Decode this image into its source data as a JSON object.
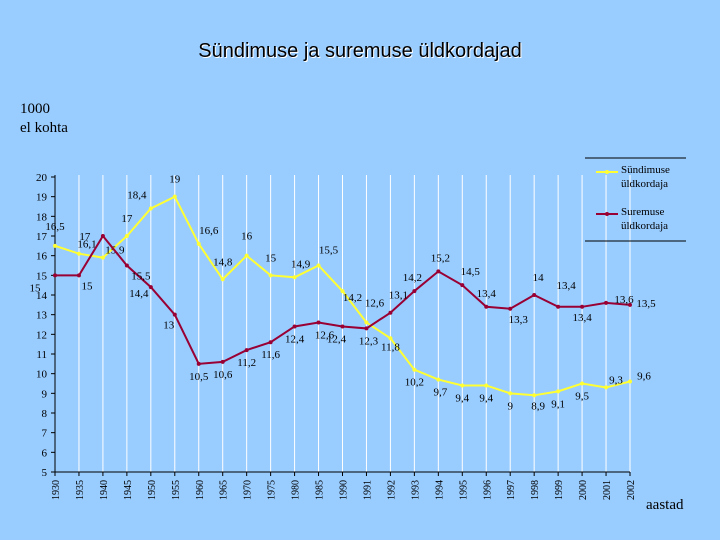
{
  "title": "Sündimuse ja suremuse üldkordajad",
  "ylabel": "1000\nel kohta",
  "xlabel": "aastad",
  "chart_data": {
    "type": "line",
    "title": "Sündimuse ja suremuse üldkordajad",
    "ylabel": "1000 el kohta",
    "xlabel": "aastad",
    "ylim": [
      5,
      20
    ],
    "yticks": [
      5,
      6,
      7,
      8,
      9,
      10,
      11,
      12,
      13,
      14,
      15,
      16,
      17,
      18,
      19,
      20
    ],
    "grid": false,
    "legend_position": "top-right",
    "categories": [
      "1930",
      "1935",
      "1940",
      "1945",
      "1950",
      "1955",
      "1960",
      "1965",
      "1970",
      "1975",
      "1980",
      "1985",
      "1990",
      "1991",
      "1992",
      "1993",
      "1994",
      "1995",
      "1996",
      "1997",
      "1998",
      "1999",
      "2000",
      "2001",
      "2002"
    ],
    "series": [
      {
        "name": "Sündimuse üldkordaja",
        "color": "#ffff33",
        "values": [
          16.5,
          16.1,
          15.9,
          17,
          18.4,
          19,
          16.6,
          14.8,
          16,
          15,
          14.9,
          15.5,
          14.2,
          12.6,
          11.8,
          10.2,
          9.7,
          9.4,
          9.4,
          9,
          8.9,
          9.1,
          9.5,
          9.3,
          9.6
        ],
        "labels": [
          "16,5",
          "16,1",
          "15,9",
          "17",
          "18,4",
          "19",
          "16,6",
          "14,8",
          "16",
          "15",
          "14,9",
          "15,5",
          "14,2",
          "12,6",
          "11,8",
          "10,2",
          "9,7",
          "9,4",
          "9,4",
          "9",
          "8,9",
          "9,1",
          "9,5",
          "9,3",
          "9,6"
        ]
      },
      {
        "name": "Suremuse üldkordaja",
        "color": "#990033",
        "values": [
          15,
          15,
          17,
          15.5,
          14.4,
          13,
          10.5,
          10.6,
          11.2,
          11.6,
          12.4,
          12.6,
          12.4,
          12.3,
          13.1,
          14.2,
          15.2,
          14.5,
          13.4,
          13.3,
          14,
          13.4,
          13.4,
          13.6,
          13.5
        ],
        "labels": [
          "15",
          "15",
          "17",
          "15,5",
          "14,4",
          "13",
          "10,5",
          "10,6",
          "11,2",
          "11,6",
          "12,4",
          "12,6",
          "12,4",
          "12,3",
          "13,1",
          "14,2",
          "15,2",
          "14,5",
          "13,4",
          "13,3",
          "14",
          "13,4",
          "13,4",
          "13,6",
          "13,5"
        ]
      }
    ],
    "legend": [
      "Sündimuse üldkordaja",
      "Suremuse üldkordaja"
    ]
  }
}
